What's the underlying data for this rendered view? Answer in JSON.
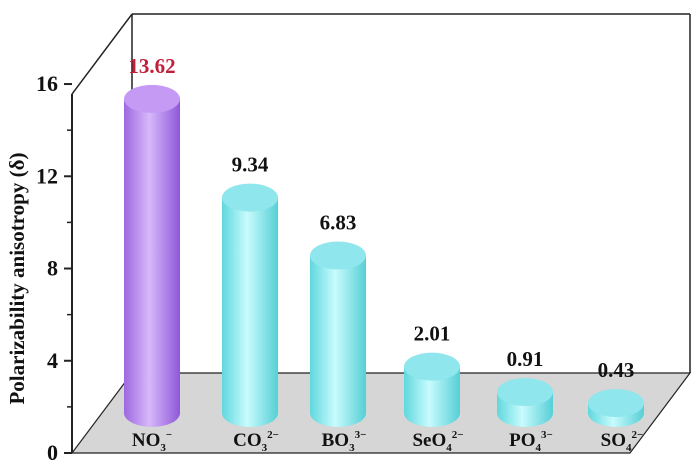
{
  "chart_data": {
    "type": "bar",
    "style": "3d-cylinder",
    "title": "",
    "ylabel": "Polarizability anisotropy (δ)",
    "xlabel": "",
    "ylim": [
      0,
      16
    ],
    "yticks": [
      "0",
      "4",
      "8",
      "12",
      "16"
    ],
    "categories": [
      {
        "base": "NO",
        "sub": "3",
        "sup": "−"
      },
      {
        "base": "CO",
        "sub": "3",
        "sup": "2−"
      },
      {
        "base": "BO",
        "sub": "3",
        "sup": "3−"
      },
      {
        "base": "SeO",
        "sub": "4",
        "sup": "2−"
      },
      {
        "base": "PO",
        "sub": "4",
        "sup": "3−"
      },
      {
        "base": "SO",
        "sub": "4",
        "sup": "2−"
      }
    ],
    "values": [
      13.62,
      9.34,
      6.83,
      2.01,
      0.91,
      0.43
    ],
    "value_labels": [
      "13.62",
      "9.34",
      "6.83",
      "2.01",
      "0.91",
      "0.43"
    ],
    "bar_colors": [
      "#b07ef0",
      "#7fe9ee",
      "#7fe9ee",
      "#7fe9ee",
      "#7fe9ee",
      "#7fe9ee"
    ],
    "value_label_colors": [
      "#c0203a",
      "#111111",
      "#111111",
      "#111111",
      "#111111",
      "#111111"
    ],
    "grid": false,
    "legend": "none"
  }
}
